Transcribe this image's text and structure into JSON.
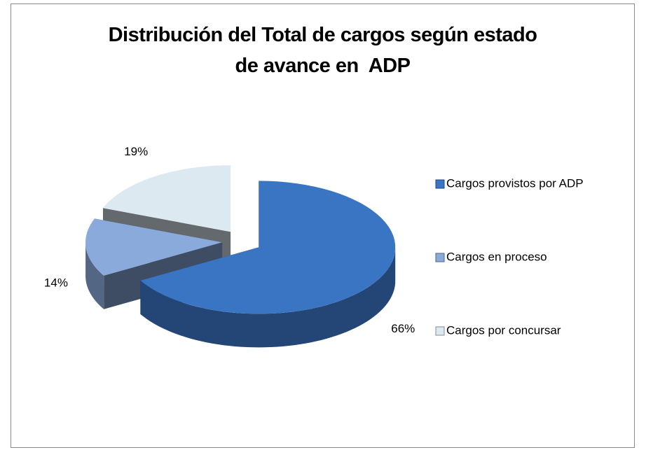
{
  "chart_data": {
    "type": "pie3d",
    "title": "Distribución del Total de cargos según estado\nde avance en  ADP",
    "categories": [
      "Cargos provistos  por ADP",
      "Cargos en proceso",
      "Cargos por concursar"
    ],
    "values": [
      66,
      14,
      19
    ],
    "value_labels": [
      "66%",
      "14%",
      "19%"
    ],
    "colors": [
      "#3a75c4",
      "#8aaadc",
      "#dce9f0"
    ],
    "legend": "right"
  }
}
